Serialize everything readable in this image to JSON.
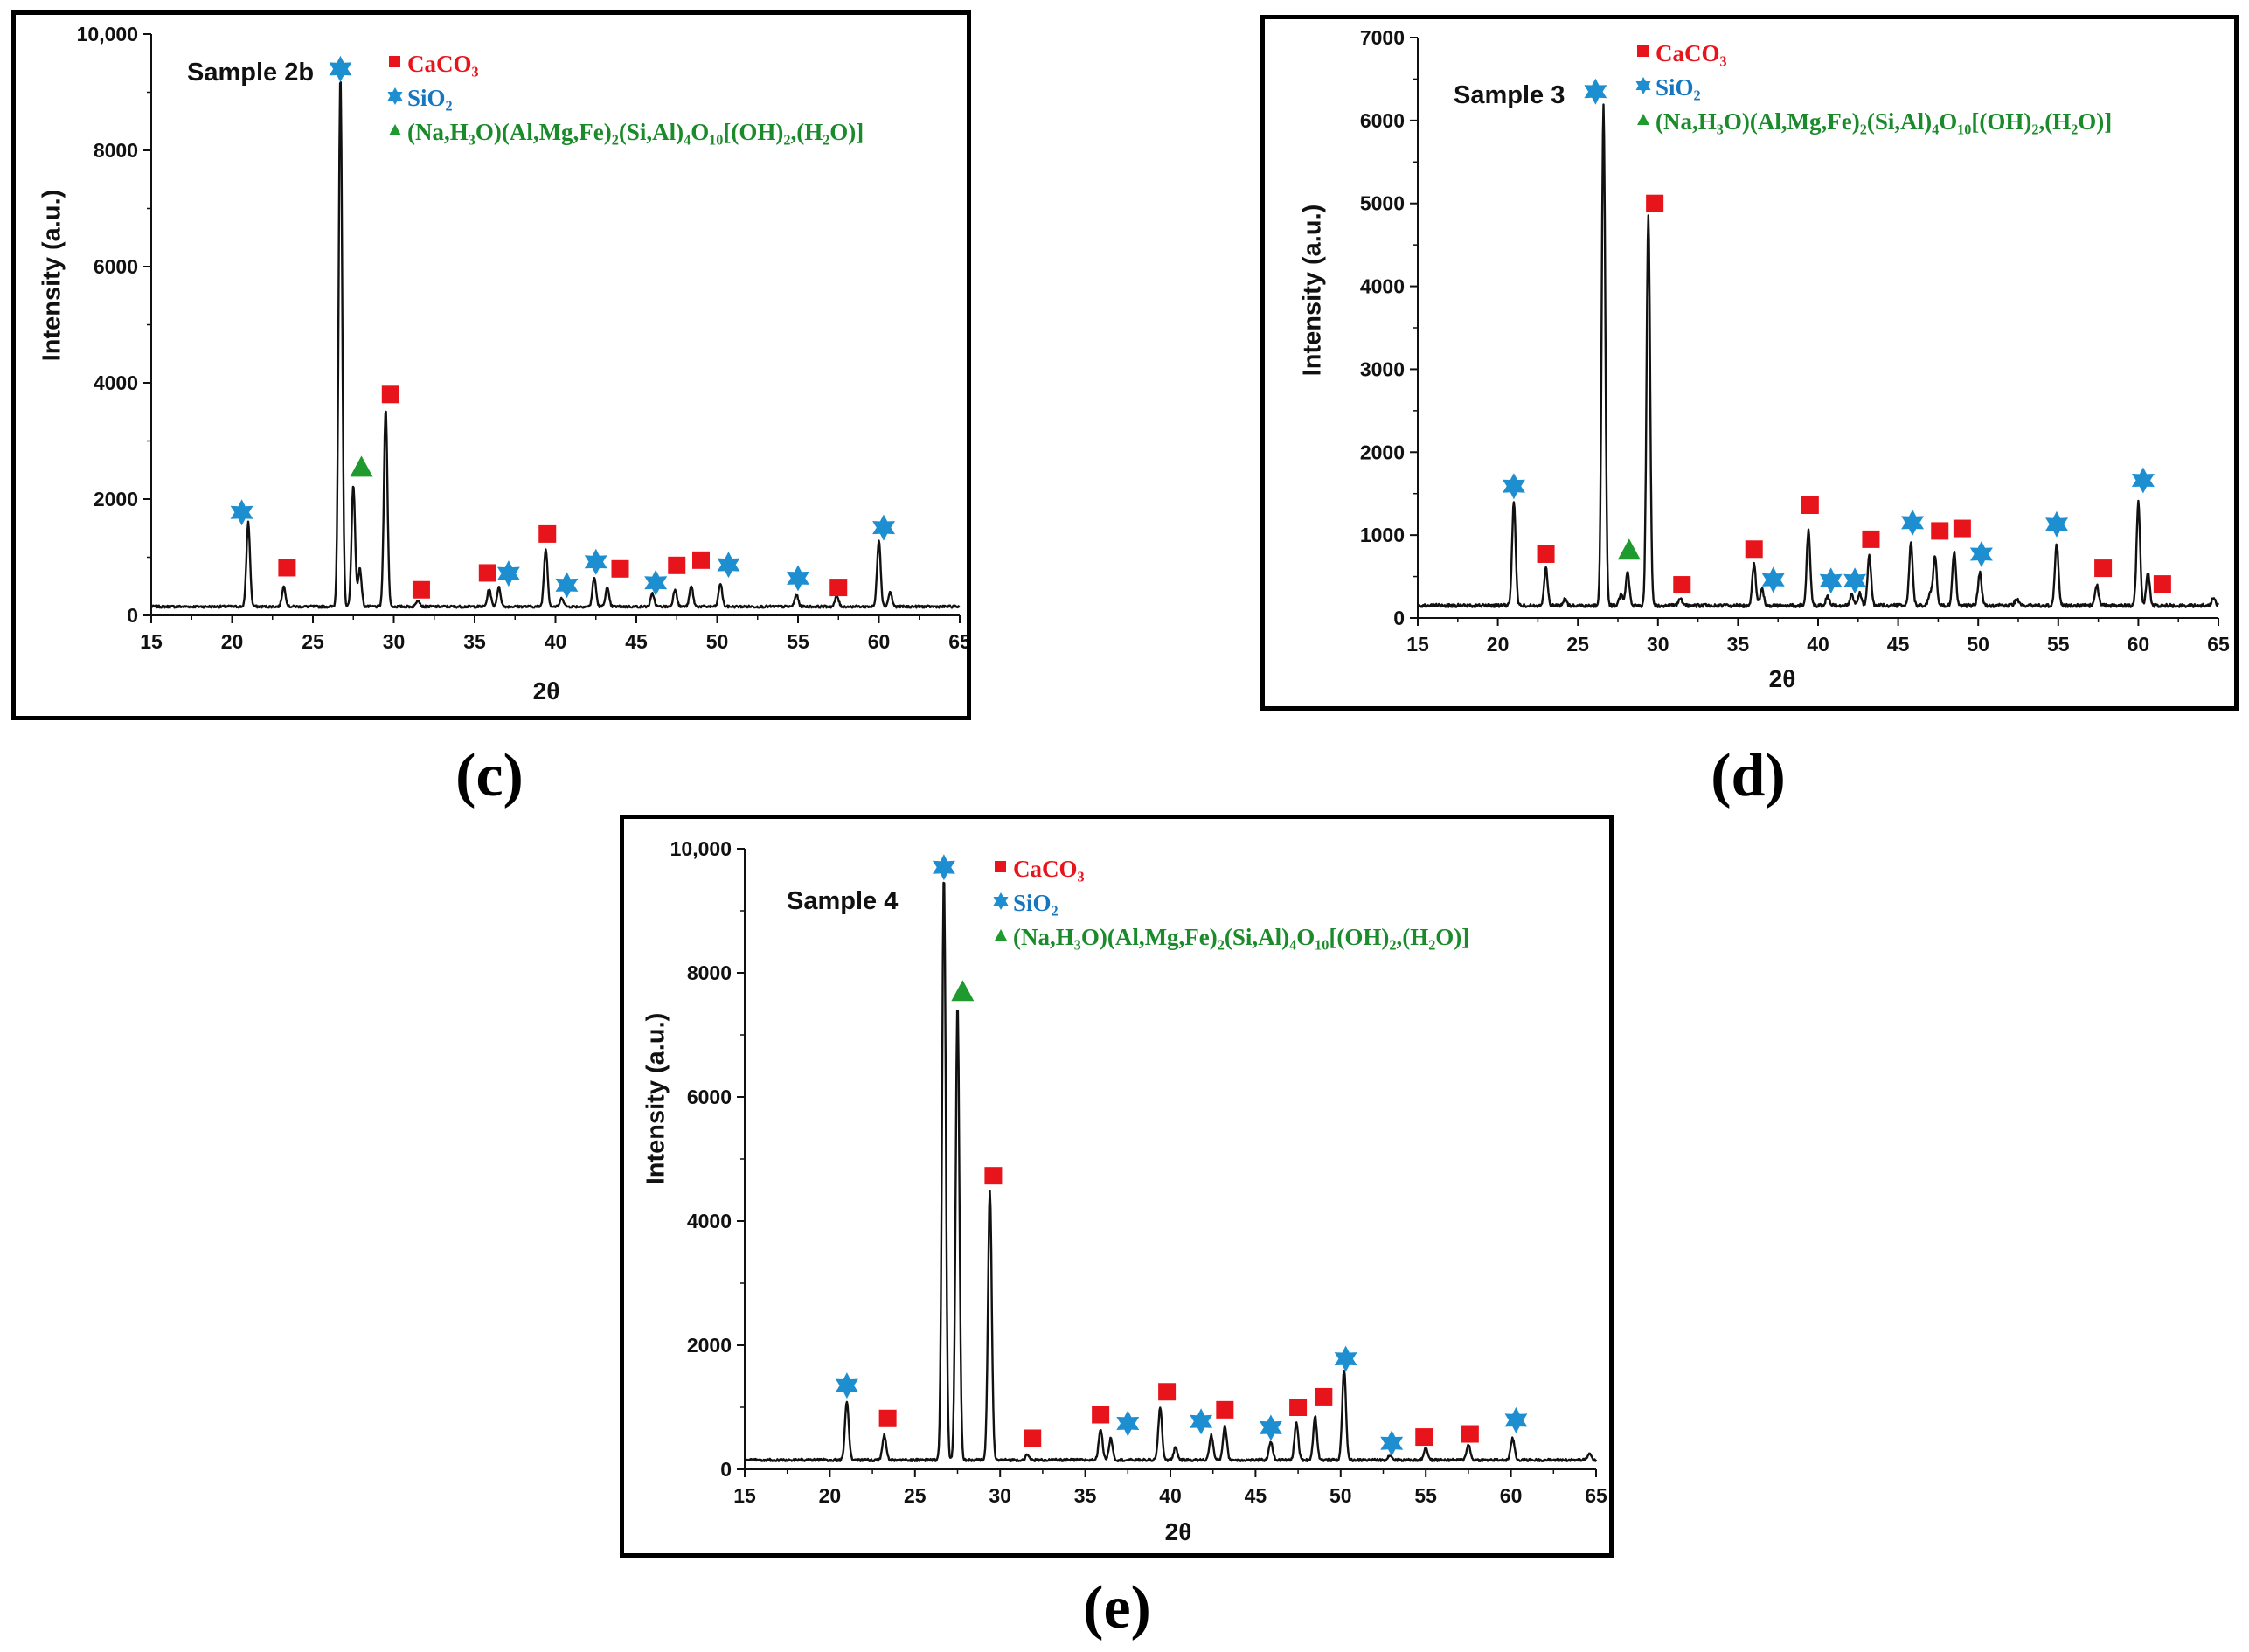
{
  "colors": {
    "caco3": "#e8141c",
    "sio2": "#1d8fd1",
    "clay": "#1f9a2e",
    "line": "#111111"
  },
  "legend": {
    "caco3": "CaCO₃",
    "sio2": "SiO₂",
    "clay": "(Na,H₃O)(Al,Mg,Fe)₂(Si,Al)₄O₁₀[(OH)₂,(H₂O)]"
  },
  "chart_data": [
    {
      "id": "c",
      "caption": "(c)",
      "type": "line",
      "title": "Sample 2b",
      "xlabel": "2θ",
      "ylabel": "Intensity (a.u.)",
      "xlim": [
        15,
        65
      ],
      "ylim": [
        0,
        10000
      ],
      "xticks": [
        15,
        20,
        25,
        30,
        35,
        40,
        45,
        50,
        55,
        60,
        65
      ],
      "xtick_labels": [
        "15",
        "20",
        "25",
        "30",
        "35",
        "40",
        "45",
        "50",
        "55",
        "60",
        "65"
      ],
      "yticks": [
        0,
        2000,
        4000,
        6000,
        8000,
        10000
      ],
      "ytick_labels": [
        "0",
        "2000",
        "4000",
        "6000",
        "8000",
        "10,000"
      ],
      "baseline": 150,
      "peaks": [
        [
          21.0,
          1450
        ],
        [
          23.2,
          350
        ],
        [
          26.7,
          9150
        ],
        [
          27.5,
          2100
        ],
        [
          27.9,
          650
        ],
        [
          29.5,
          3400
        ],
        [
          31.5,
          120
        ],
        [
          35.9,
          300
        ],
        [
          36.5,
          330
        ],
        [
          39.4,
          1000
        ],
        [
          40.4,
          150
        ],
        [
          42.4,
          500
        ],
        [
          43.2,
          320
        ],
        [
          46.0,
          220
        ],
        [
          47.4,
          300
        ],
        [
          48.4,
          350
        ],
        [
          50.2,
          400
        ],
        [
          54.9,
          200
        ],
        [
          57.4,
          180
        ],
        [
          60.0,
          1150
        ],
        [
          60.7,
          250
        ]
      ],
      "markers": [
        {
          "type": "sio2",
          "x": 20.6,
          "y": 1770
        },
        {
          "type": "caco3",
          "x": 23.4,
          "y": 820
        },
        {
          "type": "sio2",
          "x": 26.7,
          "y": 9400
        },
        {
          "type": "clay",
          "x": 28.0,
          "y": 2550
        },
        {
          "type": "caco3",
          "x": 29.8,
          "y": 3800
        },
        {
          "type": "caco3",
          "x": 31.7,
          "y": 440
        },
        {
          "type": "caco3",
          "x": 35.8,
          "y": 730
        },
        {
          "type": "sio2",
          "x": 37.1,
          "y": 720
        },
        {
          "type": "caco3",
          "x": 39.5,
          "y": 1400
        },
        {
          "type": "sio2",
          "x": 40.7,
          "y": 520
        },
        {
          "type": "sio2",
          "x": 42.5,
          "y": 920
        },
        {
          "type": "caco3",
          "x": 44.0,
          "y": 800
        },
        {
          "type": "sio2",
          "x": 46.2,
          "y": 560
        },
        {
          "type": "caco3",
          "x": 47.5,
          "y": 860
        },
        {
          "type": "caco3",
          "x": 49.0,
          "y": 950
        },
        {
          "type": "sio2",
          "x": 50.7,
          "y": 870
        },
        {
          "type": "sio2",
          "x": 55.0,
          "y": 640
        },
        {
          "type": "caco3",
          "x": 57.5,
          "y": 480
        },
        {
          "type": "sio2",
          "x": 60.3,
          "y": 1510
        }
      ]
    },
    {
      "id": "d",
      "caption": "(d)",
      "type": "line",
      "title": "Sample 3",
      "xlabel": "2θ",
      "ylabel": "Intensity (a.u.)",
      "xlim": [
        15,
        65
      ],
      "ylim": [
        0,
        7000
      ],
      "xticks": [
        15,
        20,
        25,
        30,
        35,
        40,
        45,
        50,
        55,
        60,
        65
      ],
      "xtick_labels": [
        "15",
        "20",
        "25",
        "30",
        "35",
        "40",
        "45",
        "50",
        "55",
        "60",
        "65"
      ],
      "yticks": [
        0,
        1000,
        2000,
        3000,
        4000,
        5000,
        6000,
        7000
      ],
      "ytick_labels": [
        "0",
        "1000",
        "2000",
        "3000",
        "4000",
        "5000",
        "6000",
        "7000"
      ],
      "baseline": 150,
      "peaks": [
        [
          21.0,
          1250
        ],
        [
          23.0,
          450
        ],
        [
          24.2,
          80
        ],
        [
          26.6,
          6050
        ],
        [
          27.7,
          150
        ],
        [
          28.1,
          400
        ],
        [
          29.4,
          4700
        ],
        [
          31.4,
          80
        ],
        [
          36.0,
          500
        ],
        [
          36.5,
          200
        ],
        [
          39.4,
          900
        ],
        [
          40.6,
          120
        ],
        [
          42.1,
          130
        ],
        [
          42.6,
          150
        ],
        [
          43.2,
          600
        ],
        [
          45.8,
          750
        ],
        [
          47.3,
          600
        ],
        [
          47.0,
          150
        ],
        [
          48.5,
          650
        ],
        [
          50.1,
          400
        ],
        [
          52.4,
          80
        ],
        [
          54.9,
          750
        ],
        [
          57.4,
          250
        ],
        [
          60.0,
          1250
        ],
        [
          60.6,
          400
        ],
        [
          64.7,
          100
        ]
      ],
      "markers": [
        {
          "type": "sio2",
          "x": 21.0,
          "y": 1590
        },
        {
          "type": "caco3",
          "x": 23.0,
          "y": 770
        },
        {
          "type": "sio2",
          "x": 26.1,
          "y": 6350
        },
        {
          "type": "clay",
          "x": 28.2,
          "y": 820
        },
        {
          "type": "caco3",
          "x": 29.8,
          "y": 5000
        },
        {
          "type": "caco3",
          "x": 31.5,
          "y": 400
        },
        {
          "type": "caco3",
          "x": 36.0,
          "y": 830
        },
        {
          "type": "sio2",
          "x": 37.2,
          "y": 460
        },
        {
          "type": "caco3",
          "x": 39.5,
          "y": 1360
        },
        {
          "type": "sio2",
          "x": 40.8,
          "y": 450
        },
        {
          "type": "sio2",
          "x": 42.3,
          "y": 450
        },
        {
          "type": "caco3",
          "x": 43.3,
          "y": 950
        },
        {
          "type": "sio2",
          "x": 45.9,
          "y": 1150
        },
        {
          "type": "caco3",
          "x": 47.6,
          "y": 1050
        },
        {
          "type": "caco3",
          "x": 49.0,
          "y": 1080
        },
        {
          "type": "sio2",
          "x": 50.2,
          "y": 770
        },
        {
          "type": "sio2",
          "x": 54.9,
          "y": 1130
        },
        {
          "type": "caco3",
          "x": 57.8,
          "y": 600
        },
        {
          "type": "sio2",
          "x": 60.3,
          "y": 1660
        },
        {
          "type": "caco3",
          "x": 61.5,
          "y": 410
        }
      ]
    },
    {
      "id": "e",
      "caption": "(e)",
      "type": "line",
      "title": "Sample 4",
      "xlabel": "2θ",
      "ylabel": "Intensity (a.u.)",
      "xlim": [
        15,
        65
      ],
      "ylim": [
        0,
        10000
      ],
      "xticks": [
        15,
        20,
        25,
        30,
        35,
        40,
        45,
        50,
        55,
        60,
        65
      ],
      "xtick_labels": [
        "15",
        "20",
        "25",
        "30",
        "35",
        "40",
        "45",
        "50",
        "55",
        "60",
        "65"
      ],
      "yticks": [
        0,
        2000,
        4000,
        6000,
        8000,
        10000
      ],
      "ytick_labels": [
        "0",
        "2000",
        "4000",
        "6000",
        "8000",
        "10,000"
      ],
      "baseline": 150,
      "peaks": [
        [
          21.0,
          950
        ],
        [
          23.2,
          400
        ],
        [
          26.7,
          9450
        ],
        [
          27.5,
          7350
        ],
        [
          29.4,
          4350
        ],
        [
          31.6,
          80
        ],
        [
          35.9,
          500
        ],
        [
          36.5,
          350
        ],
        [
          39.4,
          850
        ],
        [
          40.3,
          200
        ],
        [
          42.4,
          400
        ],
        [
          43.2,
          550
        ],
        [
          45.9,
          300
        ],
        [
          47.4,
          600
        ],
        [
          48.5,
          700
        ],
        [
          50.2,
          1450
        ],
        [
          52.9,
          80
        ],
        [
          55.0,
          200
        ],
        [
          57.5,
          250
        ],
        [
          60.1,
          350
        ],
        [
          64.6,
          100
        ]
      ],
      "markers": [
        {
          "type": "sio2",
          "x": 21.0,
          "y": 1350
        },
        {
          "type": "caco3",
          "x": 23.4,
          "y": 820
        },
        {
          "type": "sio2",
          "x": 26.7,
          "y": 9700
        },
        {
          "type": "clay",
          "x": 27.8,
          "y": 7700
        },
        {
          "type": "caco3",
          "x": 29.6,
          "y": 4730
        },
        {
          "type": "caco3",
          "x": 31.9,
          "y": 500
        },
        {
          "type": "caco3",
          "x": 35.9,
          "y": 880
        },
        {
          "type": "sio2",
          "x": 37.5,
          "y": 740
        },
        {
          "type": "caco3",
          "x": 39.8,
          "y": 1250
        },
        {
          "type": "sio2",
          "x": 41.8,
          "y": 770
        },
        {
          "type": "caco3",
          "x": 43.2,
          "y": 960
        },
        {
          "type": "sio2",
          "x": 45.9,
          "y": 670
        },
        {
          "type": "caco3",
          "x": 47.5,
          "y": 1000
        },
        {
          "type": "caco3",
          "x": 49.0,
          "y": 1170
        },
        {
          "type": "sio2",
          "x": 50.3,
          "y": 1780
        },
        {
          "type": "sio2",
          "x": 53.0,
          "y": 420
        },
        {
          "type": "caco3",
          "x": 54.9,
          "y": 520
        },
        {
          "type": "caco3",
          "x": 57.6,
          "y": 570
        },
        {
          "type": "sio2",
          "x": 60.3,
          "y": 790
        }
      ]
    }
  ]
}
